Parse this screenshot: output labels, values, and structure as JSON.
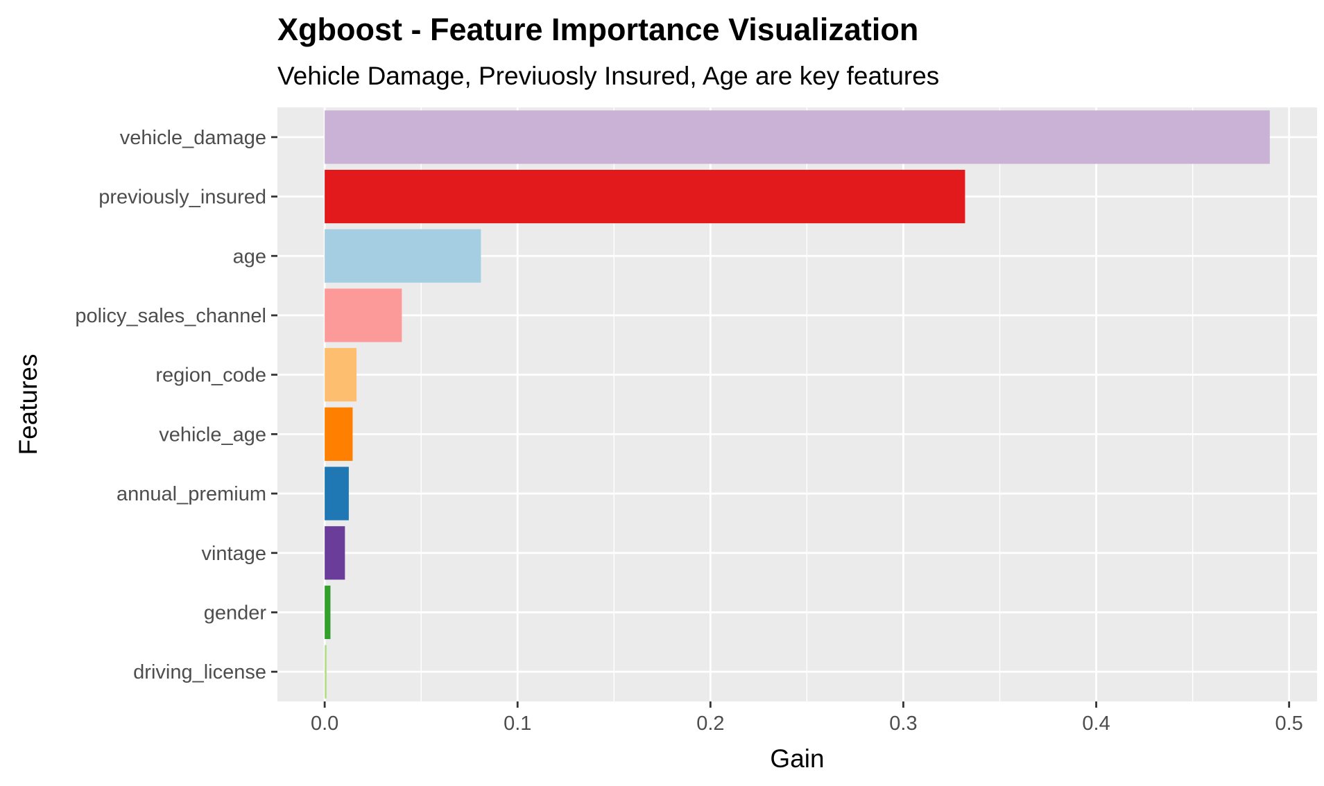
{
  "chart_data": {
    "type": "bar",
    "orientation": "horizontal",
    "title": "Xgboost - Feature Importance Visualization",
    "subtitle": "Vehicle Damage, Previuosly Insured, Age are key features",
    "xlabel": "Gain",
    "ylabel": "Features",
    "categories": [
      "vehicle_damage",
      "previously_insured",
      "age",
      "policy_sales_channel",
      "region_code",
      "vehicle_age",
      "annual_premium",
      "vintage",
      "gender",
      "driving_license"
    ],
    "values": [
      0.49,
      0.332,
      0.081,
      0.04,
      0.0165,
      0.0145,
      0.0125,
      0.0105,
      0.003,
      0.001
    ],
    "colors": [
      "#CAB2D6",
      "#E31A1C",
      "#A6CEE3",
      "#FB9A99",
      "#FDBF6F",
      "#FF7F00",
      "#1F78B4",
      "#6A3D9A",
      "#33A02C",
      "#B2DF8A"
    ],
    "xlim": [
      -0.0245,
      0.5145
    ],
    "xticks": [
      0.0,
      0.1,
      0.2,
      0.3,
      0.4,
      0.5
    ],
    "xtick_labels": [
      "0.0",
      "0.1",
      "0.2",
      "0.3",
      "0.4",
      "0.5"
    ],
    "grid": true,
    "legend": "none",
    "panel_background": "#EBEBEB",
    "grid_color": "#FFFFFF"
  }
}
